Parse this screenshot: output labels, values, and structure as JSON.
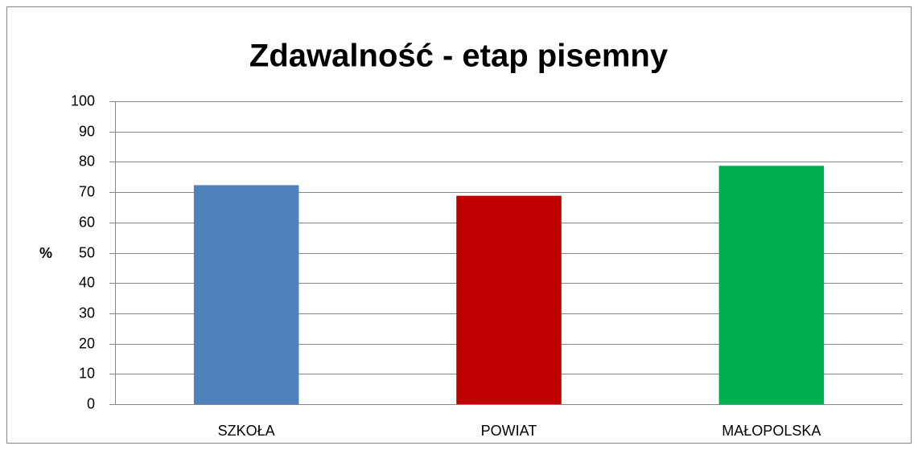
{
  "chart_data": {
    "type": "bar",
    "title": "Zdawalność - etap pisemny",
    "y_label": "%",
    "categories": [
      "SZKOŁA",
      "POWIAT",
      "MAŁOPOLSKA"
    ],
    "values": [
      72.3,
      68.8,
      78.7
    ],
    "colors": [
      "#4f81bd",
      "#c00000",
      "#00b050"
    ],
    "ylim": [
      0,
      100
    ],
    "yticks": [
      0,
      10,
      20,
      30,
      40,
      50,
      60,
      70,
      80,
      90,
      100
    ],
    "grid": true
  }
}
